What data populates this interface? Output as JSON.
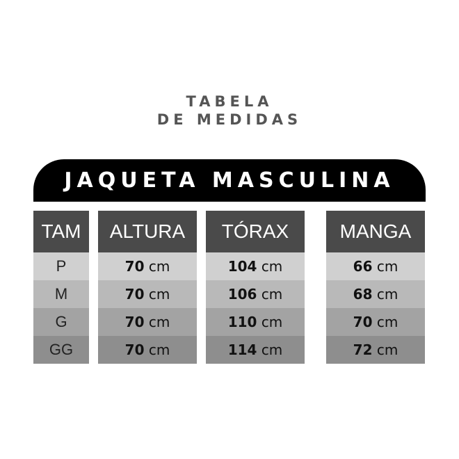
{
  "title": {
    "line1": "TABELA",
    "line2": "DE MEDIDAS"
  },
  "banner": "JAQUETA MASCULINA",
  "unit": "cm",
  "columns": [
    {
      "header": "TAM",
      "values": [
        "P",
        "M",
        "G",
        "GG"
      ]
    },
    {
      "header": "ALTURA",
      "values": [
        "70",
        "70",
        "70",
        "70"
      ]
    },
    {
      "header": "TÓRAX",
      "values": [
        "104",
        "106",
        "110",
        "114"
      ]
    },
    {
      "header": "MANGA",
      "values": [
        "66",
        "68",
        "70",
        "72"
      ]
    }
  ],
  "colors": {
    "header": "#4a4a4a",
    "banner": "#000000",
    "rows": [
      "#d0d0d0",
      "#b9b9b9",
      "#a3a3a3",
      "#8e8e8e"
    ]
  }
}
